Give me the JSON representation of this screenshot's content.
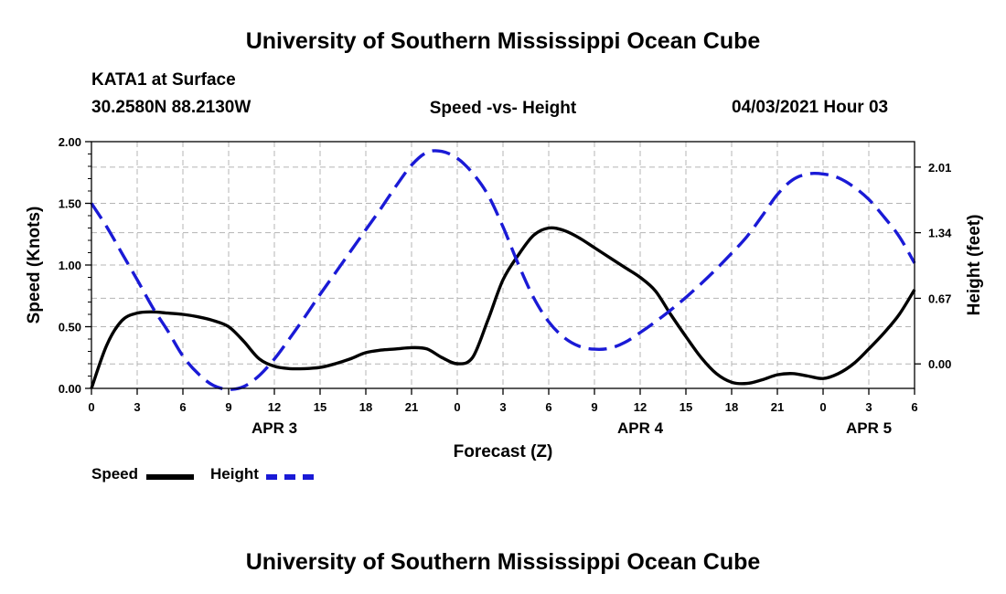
{
  "header": {
    "title": "University of Southern Mississippi Ocean Cube",
    "station": "KATA1 at Surface",
    "coords": "30.2580N  88.2130W",
    "date_hour": "04/03/2021 Hour 03"
  },
  "footer": {
    "title": "University of Southern Mississippi Ocean Cube"
  },
  "legend": {
    "speed_label": "Speed",
    "height_label": "Height"
  },
  "colors": {
    "speed": "#000000",
    "height": "#1a1ad6",
    "grid": "#b4b4b4"
  },
  "chart_data": {
    "type": "line",
    "title": "Speed -vs- Height",
    "xlabel": "Forecast (Z)",
    "ylabel": "Speed (Knots)",
    "ylabel_right": "Height (feet)",
    "xlim": [
      0,
      54
    ],
    "ylim": [
      0,
      2.0
    ],
    "ylim_right": [
      -0.25,
      2.27
    ],
    "x_ticks": [
      0,
      3,
      6,
      9,
      12,
      15,
      18,
      21,
      24,
      27,
      30,
      33,
      36,
      39,
      42,
      45,
      48,
      51,
      54
    ],
    "x_tick_labels": [
      "0",
      "3",
      "6",
      "9",
      "12",
      "15",
      "18",
      "21",
      "0",
      "3",
      "6",
      "9",
      "12",
      "15",
      "18",
      "21",
      "0",
      "3",
      "6"
    ],
    "y_ticks": [
      0,
      0.5,
      1.0,
      1.5,
      2.0
    ],
    "y_tick_labels": [
      "0.00",
      "0.50",
      "1.00",
      "1.50",
      "2.00"
    ],
    "y_ticks_right": [
      0,
      0.67,
      1.34,
      2.01
    ],
    "y_tick_labels_right": [
      "0.00",
      "0.67",
      "1.34",
      "2.01"
    ],
    "date_labels": [
      {
        "x": 12,
        "label": "APR 3"
      },
      {
        "x": 36,
        "label": "APR 4"
      },
      {
        "x": 51,
        "label": "APR 5"
      }
    ],
    "grid": true,
    "series": [
      {
        "name": "Speed",
        "axis": "left",
        "style": "solid",
        "x": [
          0,
          1,
          2,
          3,
          4,
          5,
          6,
          7,
          8,
          9,
          10,
          11,
          12,
          13,
          14,
          15,
          16,
          17,
          18,
          19,
          20,
          21,
          22,
          23,
          24,
          25,
          26,
          27,
          28,
          29,
          30,
          31,
          32,
          33,
          34,
          35,
          36,
          37,
          38,
          39,
          40,
          41,
          42,
          43,
          44,
          45,
          46,
          47,
          48,
          49,
          50,
          51,
          52,
          53,
          54
        ],
        "values": [
          0.0,
          0.35,
          0.55,
          0.61,
          0.62,
          0.61,
          0.6,
          0.58,
          0.55,
          0.5,
          0.38,
          0.24,
          0.18,
          0.16,
          0.16,
          0.17,
          0.2,
          0.24,
          0.29,
          0.31,
          0.32,
          0.33,
          0.32,
          0.25,
          0.2,
          0.25,
          0.55,
          0.88,
          1.08,
          1.24,
          1.3,
          1.28,
          1.22,
          1.14,
          1.06,
          0.98,
          0.9,
          0.79,
          0.6,
          0.42,
          0.25,
          0.12,
          0.05,
          0.04,
          0.07,
          0.11,
          0.12,
          0.1,
          0.08,
          0.12,
          0.2,
          0.32,
          0.45,
          0.6,
          0.8
        ]
      },
      {
        "name": "Height",
        "axis": "right",
        "style": "dashed",
        "x": [
          0,
          1,
          2,
          3,
          4,
          5,
          6,
          7,
          8,
          9,
          10,
          11,
          12,
          13,
          14,
          15,
          16,
          17,
          18,
          19,
          20,
          21,
          22,
          23,
          24,
          25,
          26,
          27,
          28,
          29,
          30,
          31,
          32,
          33,
          34,
          35,
          36,
          37,
          38,
          39,
          40,
          41,
          42,
          43,
          44,
          45,
          46,
          47,
          48,
          49,
          50,
          51,
          52,
          53,
          54
        ],
        "values": [
          1.64,
          1.4,
          1.13,
          0.86,
          0.58,
          0.34,
          0.08,
          -0.1,
          -0.22,
          -0.26,
          -0.23,
          -0.12,
          0.05,
          0.26,
          0.48,
          0.71,
          0.93,
          1.15,
          1.37,
          1.59,
          1.82,
          2.03,
          2.16,
          2.17,
          2.1,
          1.95,
          1.73,
          1.4,
          1.02,
          0.68,
          0.43,
          0.27,
          0.18,
          0.15,
          0.16,
          0.22,
          0.32,
          0.43,
          0.55,
          0.68,
          0.82,
          0.97,
          1.13,
          1.3,
          1.51,
          1.73,
          1.88,
          1.94,
          1.94,
          1.9,
          1.81,
          1.68,
          1.5,
          1.3,
          1.03
        ]
      }
    ]
  }
}
